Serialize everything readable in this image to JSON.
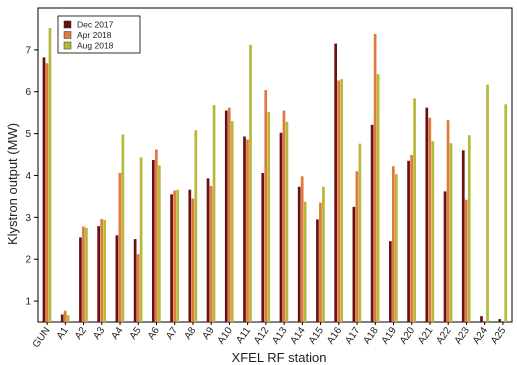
{
  "chart_data": {
    "type": "bar",
    "title": "",
    "xlabel": "XFEL RF station",
    "ylabel": "Klystron output (MW)",
    "ylim": [
      0.5,
      8
    ],
    "yticks": [
      1,
      2,
      3,
      4,
      5,
      6,
      7
    ],
    "grid": false,
    "legend_position": "top-left",
    "categories": [
      "GUN",
      "A1",
      "A2",
      "A3",
      "A4",
      "A5",
      "A6",
      "A7",
      "A8",
      "A9",
      "A10",
      "A11",
      "A12",
      "A13",
      "A14",
      "A15",
      "A16",
      "A17",
      "A18",
      "A19",
      "A20",
      "A21",
      "A22",
      "A23",
      "A24",
      "A25"
    ],
    "series": [
      {
        "name": "Dec 2017",
        "color": "#6b1010",
        "values": [
          6.82,
          0.68,
          2.52,
          2.79,
          2.57,
          2.48,
          4.37,
          3.55,
          3.66,
          3.93,
          5.55,
          4.93,
          4.06,
          5.02,
          3.73,
          2.95,
          7.15,
          3.25,
          5.21,
          2.43,
          4.35,
          5.62,
          3.62,
          4.6,
          0.64,
          0.57
        ]
      },
      {
        "name": "Apr 2018",
        "color": "#e07a3c",
        "values": [
          6.68,
          0.77,
          2.78,
          2.96,
          4.06,
          2.12,
          4.62,
          3.64,
          3.45,
          3.75,
          5.62,
          4.86,
          6.04,
          5.55,
          3.98,
          3.35,
          6.27,
          4.1,
          7.38,
          4.22,
          4.49,
          5.38,
          5.32,
          3.42,
          null,
          null
        ]
      },
      {
        "name": "Aug 2018",
        "color": "#b5b83a",
        "values": [
          7.52,
          0.66,
          2.75,
          2.94,
          4.98,
          4.43,
          4.24,
          3.66,
          5.08,
          5.68,
          5.3,
          7.12,
          5.52,
          5.28,
          3.37,
          3.73,
          6.3,
          4.76,
          6.42,
          4.03,
          5.84,
          4.82,
          4.77,
          4.96,
          6.17,
          5.7
        ]
      }
    ]
  }
}
